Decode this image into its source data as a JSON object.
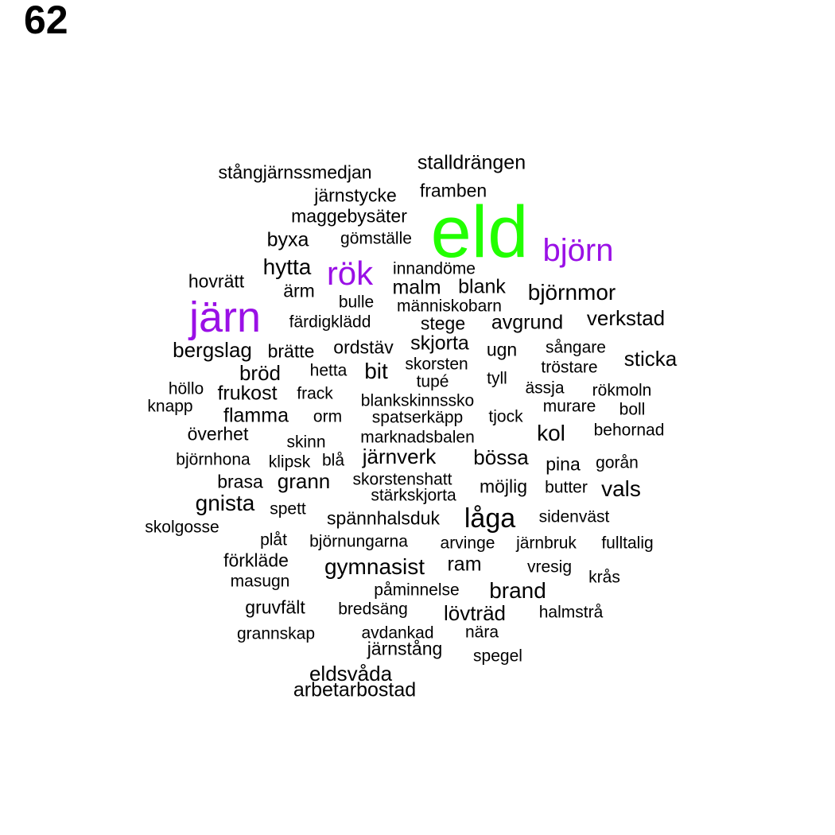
{
  "page_number": "62",
  "colors": {
    "default": "#000000",
    "green": "#22ff00",
    "purple": "#9a10e6"
  },
  "words": [
    {
      "text": "eld",
      "color": "green",
      "emphasis": 5
    },
    {
      "text": "järn",
      "color": "purple",
      "emphasis": 4
    },
    {
      "text": "rök",
      "color": "purple",
      "emphasis": 3
    },
    {
      "text": "björn",
      "color": "purple",
      "emphasis": 3
    },
    {
      "text": "stalldrängen"
    },
    {
      "text": "stångjärnssmedjan"
    },
    {
      "text": "framben"
    },
    {
      "text": "järnstycke"
    },
    {
      "text": "maggebysäter"
    },
    {
      "text": "byxa"
    },
    {
      "text": "gömställe"
    },
    {
      "text": "hytta"
    },
    {
      "text": "innandöme"
    },
    {
      "text": "hovrätt"
    },
    {
      "text": "ärm"
    },
    {
      "text": "malm"
    },
    {
      "text": "blank"
    },
    {
      "text": "björnmor"
    },
    {
      "text": "bulle"
    },
    {
      "text": "människobarn"
    },
    {
      "text": "färdigklädd"
    },
    {
      "text": "stege"
    },
    {
      "text": "avgrund"
    },
    {
      "text": "verkstad"
    },
    {
      "text": "bergslag"
    },
    {
      "text": "brätte"
    },
    {
      "text": "ordstäv"
    },
    {
      "text": "skjorta"
    },
    {
      "text": "ugn"
    },
    {
      "text": "sångare"
    },
    {
      "text": "sticka"
    },
    {
      "text": "bröd"
    },
    {
      "text": "hetta"
    },
    {
      "text": "bit"
    },
    {
      "text": "skorsten"
    },
    {
      "text": "tröstare"
    },
    {
      "text": "tupé"
    },
    {
      "text": "tyll"
    },
    {
      "text": "höllo"
    },
    {
      "text": "frukost"
    },
    {
      "text": "frack"
    },
    {
      "text": "ässja"
    },
    {
      "text": "rökmoln"
    },
    {
      "text": "knapp"
    },
    {
      "text": "blankskinnssko"
    },
    {
      "text": "murare"
    },
    {
      "text": "boll"
    },
    {
      "text": "flamma"
    },
    {
      "text": "orm"
    },
    {
      "text": "spatserkäpp"
    },
    {
      "text": "tjock"
    },
    {
      "text": "kol"
    },
    {
      "text": "behornad"
    },
    {
      "text": "överhet"
    },
    {
      "text": "skinn"
    },
    {
      "text": "marknadsbalen"
    },
    {
      "text": "björnhona"
    },
    {
      "text": "klipsk"
    },
    {
      "text": "blå"
    },
    {
      "text": "järnverk"
    },
    {
      "text": "bössa"
    },
    {
      "text": "pina"
    },
    {
      "text": "gorån"
    },
    {
      "text": "brasa"
    },
    {
      "text": "grann"
    },
    {
      "text": "skorstenshatt"
    },
    {
      "text": "möjlig"
    },
    {
      "text": "butter"
    },
    {
      "text": "vals"
    },
    {
      "text": "stärkskjorta"
    },
    {
      "text": "gnista"
    },
    {
      "text": "spett"
    },
    {
      "text": "spännhalsduk"
    },
    {
      "text": "låga"
    },
    {
      "text": "sidenväst"
    },
    {
      "text": "skolgosse"
    },
    {
      "text": "plåt"
    },
    {
      "text": "björnungarna"
    },
    {
      "text": "arvinge"
    },
    {
      "text": "järnbruk"
    },
    {
      "text": "fulltalig"
    },
    {
      "text": "förkläde"
    },
    {
      "text": "gymnasist"
    },
    {
      "text": "ram"
    },
    {
      "text": "vresig"
    },
    {
      "text": "krås"
    },
    {
      "text": "masugn"
    },
    {
      "text": "påminnelse"
    },
    {
      "text": "brand"
    },
    {
      "text": "gruvfält"
    },
    {
      "text": "bredsäng"
    },
    {
      "text": "lövträd"
    },
    {
      "text": "halmstrå"
    },
    {
      "text": "grannskap"
    },
    {
      "text": "avdankad"
    },
    {
      "text": "nära"
    },
    {
      "text": "järnstång"
    },
    {
      "text": "spegel"
    },
    {
      "text": "eldsvåda"
    },
    {
      "text": "arbetarbostad"
    }
  ]
}
